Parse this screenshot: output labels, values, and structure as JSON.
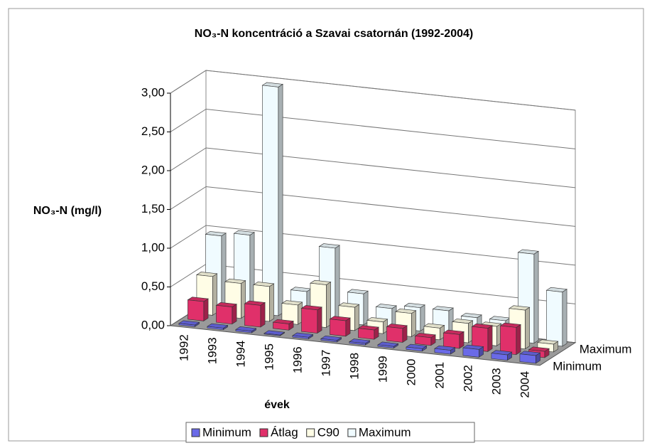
{
  "chart_data": {
    "type": "bar3d",
    "title": "NO₃-N koncentráció a Szavai csatornán (1992-2004)",
    "y_label": "NO₃-N (mg/l)",
    "x_label": "évek",
    "categories": [
      "1992",
      "1993",
      "1994",
      "1995",
      "1996",
      "1997",
      "1998",
      "1999",
      "2000",
      "2001",
      "2002",
      "2003",
      "2004"
    ],
    "series": [
      {
        "name": "Minimum",
        "color": "#6a6ae8",
        "values": [
          0.02,
          0.02,
          0.02,
          0.01,
          0.02,
          0.02,
          0.02,
          0.02,
          0.03,
          0.05,
          0.1,
          0.07,
          0.1
        ]
      },
      {
        "name": "Átlag",
        "color": "#e0306a",
        "values": [
          0.25,
          0.22,
          0.28,
          0.08,
          0.3,
          0.2,
          0.12,
          0.18,
          0.1,
          0.18,
          0.3,
          0.35,
          0.08
        ]
      },
      {
        "name": "C90",
        "color": "#fffde6",
        "values": [
          0.5,
          0.45,
          0.45,
          0.25,
          0.55,
          0.3,
          0.15,
          0.3,
          0.15,
          0.25,
          0.25,
          0.5,
          0.1
        ]
      },
      {
        "name": "Maximum",
        "color": "#f0fbff",
        "values": [
          0.95,
          1.0,
          2.95,
          0.35,
          0.95,
          0.4,
          0.25,
          0.3,
          0.3,
          0.25,
          0.25,
          1.15,
          0.7
        ]
      }
    ],
    "ylim": [
      0,
      3
    ],
    "yticks": [
      {
        "value": 0,
        "label": "0,00"
      },
      {
        "value": 0.5,
        "label": "0,50"
      },
      {
        "value": 1,
        "label": "1,00"
      },
      {
        "value": 1.5,
        "label": "1,50"
      },
      {
        "value": 2,
        "label": "2,00"
      },
      {
        "value": 2.5,
        "label": "2,50"
      },
      {
        "value": 3,
        "label": "3,00"
      }
    ],
    "grid": true,
    "legend": "bottom"
  }
}
